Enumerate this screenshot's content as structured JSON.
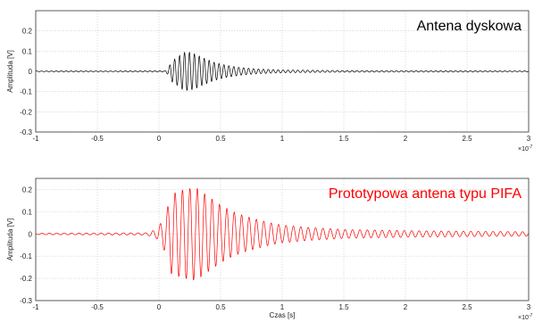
{
  "chart_data": [
    {
      "type": "line",
      "title": "Antena dyskowa",
      "title_color": "#000000",
      "line_color": "#000000",
      "xlabel": "",
      "ylabel": "Amplituda [V]",
      "x_multiplier_label": "×10",
      "x_multiplier_exp": "-7",
      "xlim": [
        -1,
        3
      ],
      "ylim": [
        -0.3,
        0.3
      ],
      "x_ticks": [
        -1,
        -0.5,
        0,
        0.5,
        1,
        1.5,
        2,
        2.5,
        3
      ],
      "x_tick_labels": [
        "-1",
        "-0.5",
        "0",
        "0.5",
        "1",
        "1.5",
        "2",
        "2.5",
        "3"
      ],
      "y_ticks": [
        -0.3,
        -0.2,
        -0.1,
        0,
        0.1,
        0.2
      ],
      "y_tick_labels": [
        "-0.3",
        "-0.2",
        "-0.1",
        "0",
        "0.1",
        "0.2"
      ],
      "grid": true,
      "series": [
        {
          "envelope": [
            [
              -1.0,
              0.002
            ],
            [
              0.05,
              0.003
            ],
            [
              0.08,
              0.02
            ],
            [
              0.1,
              0.05
            ],
            [
              0.15,
              0.07
            ],
            [
              0.2,
              0.095
            ],
            [
              0.25,
              0.095
            ],
            [
              0.3,
              0.085
            ],
            [
              0.35,
              0.07
            ],
            [
              0.45,
              0.045
            ],
            [
              0.55,
              0.03
            ],
            [
              0.65,
              0.02
            ],
            [
              0.8,
              0.012
            ],
            [
              1.0,
              0.007
            ],
            [
              1.5,
              0.004
            ],
            [
              3.0,
              0.003
            ]
          ],
          "period": 0.04
        }
      ]
    },
    {
      "type": "line",
      "title": "Prototypowa antena typu PIFA",
      "title_color": "#ff0000",
      "line_color": "#ff0000",
      "xlabel": "Czas [s]",
      "ylabel": "Amplituda [V]",
      "x_multiplier_label": "×10",
      "x_multiplier_exp": "-7",
      "xlim": [
        -1,
        3
      ],
      "ylim": [
        -0.3,
        0.25
      ],
      "x_ticks": [
        -1,
        -0.5,
        0,
        0.5,
        1,
        1.5,
        2,
        2.5,
        3
      ],
      "x_tick_labels": [
        "-1",
        "-0.5",
        "0",
        "0.5",
        "1",
        "1.5",
        "2",
        "2.5",
        "3"
      ],
      "y_ticks": [
        -0.3,
        -0.2,
        -0.1,
        0,
        0.1,
        0.2
      ],
      "y_tick_labels": [
        "-0.3",
        "-0.2",
        "-0.1",
        "0",
        "0.1",
        "0.2"
      ],
      "grid": true,
      "series": [
        {
          "envelope": [
            [
              -1.0,
              0.003
            ],
            [
              -0.1,
              0.005
            ],
            [
              -0.02,
              0.02
            ],
            [
              0.05,
              0.08
            ],
            [
              0.1,
              0.18
            ],
            [
              0.2,
              0.2
            ],
            [
              0.3,
              0.21
            ],
            [
              0.4,
              0.17
            ],
            [
              0.5,
              0.13
            ],
            [
              0.6,
              0.1
            ],
            [
              0.7,
              0.08
            ],
            [
              0.8,
              0.065
            ],
            [
              0.9,
              0.05
            ],
            [
              1.0,
              0.04
            ],
            [
              1.2,
              0.03
            ],
            [
              1.5,
              0.02
            ],
            [
              2.0,
              0.015
            ],
            [
              2.5,
              0.012
            ],
            [
              3.0,
              0.01
            ]
          ],
          "period": 0.06
        }
      ]
    }
  ]
}
